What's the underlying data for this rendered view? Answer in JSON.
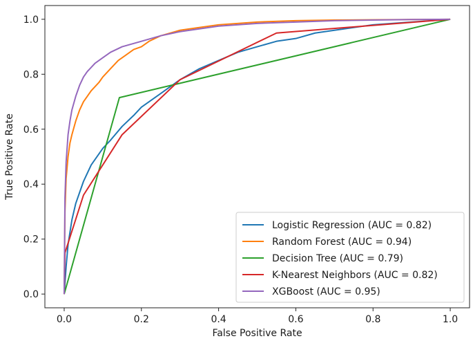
{
  "chart_data": {
    "type": "line",
    "title": "",
    "xlabel": "False Positive Rate",
    "ylabel": "True Positive Rate",
    "xlim": [
      -0.05,
      1.05
    ],
    "ylim": [
      -0.05,
      1.05
    ],
    "xticks": [
      0.0,
      0.2,
      0.4,
      0.6,
      0.8,
      1.0
    ],
    "xtick_labels": [
      "0.0",
      "0.2",
      "0.4",
      "0.6",
      "0.8",
      "1.0"
    ],
    "yticks": [
      0.0,
      0.2,
      0.4,
      0.6,
      0.8,
      1.0
    ],
    "ytick_labels": [
      "0.0",
      "0.2",
      "0.4",
      "0.6",
      "0.8",
      "1.0"
    ],
    "grid": false,
    "legend_position": "lower-right",
    "series": [
      {
        "name": "Logistic Regression (AUC = 0.82)",
        "color": "#1f77b4",
        "x": [
          0,
          0.005,
          0.01,
          0.02,
          0.03,
          0.05,
          0.07,
          0.1,
          0.12,
          0.15,
          0.18,
          0.2,
          0.25,
          0.3,
          0.35,
          0.4,
          0.45,
          0.5,
          0.55,
          0.6,
          0.65,
          0.7,
          0.75,
          0.8,
          0.85,
          0.9,
          0.95,
          1.0
        ],
        "y": [
          0,
          0.1,
          0.18,
          0.27,
          0.33,
          0.41,
          0.47,
          0.53,
          0.56,
          0.61,
          0.65,
          0.68,
          0.73,
          0.78,
          0.82,
          0.85,
          0.88,
          0.9,
          0.92,
          0.93,
          0.95,
          0.96,
          0.97,
          0.98,
          0.985,
          0.99,
          0.995,
          1.0
        ]
      },
      {
        "name": "Random Forest (AUC = 0.94)",
        "color": "#ff7f0e",
        "x": [
          0,
          0.002,
          0.005,
          0.01,
          0.015,
          0.02,
          0.03,
          0.04,
          0.05,
          0.07,
          0.09,
          0.1,
          0.12,
          0.14,
          0.16,
          0.18,
          0.2,
          0.22,
          0.25,
          0.3,
          0.35,
          0.4,
          0.5,
          0.6,
          0.7,
          0.8,
          0.9,
          1.0
        ],
        "y": [
          0,
          0.3,
          0.42,
          0.5,
          0.55,
          0.58,
          0.63,
          0.67,
          0.7,
          0.74,
          0.77,
          0.79,
          0.82,
          0.85,
          0.87,
          0.89,
          0.9,
          0.92,
          0.94,
          0.96,
          0.97,
          0.98,
          0.99,
          0.995,
          0.997,
          0.998,
          0.999,
          1.0
        ]
      },
      {
        "name": "Decision Tree (AUC = 0.79)",
        "color": "#2ca02c",
        "x": [
          0,
          0.143,
          1.0
        ],
        "y": [
          0,
          0.715,
          1.0
        ]
      },
      {
        "name": "K-Nearest Neighbors (AUC = 0.82)",
        "color": "#d62728",
        "x": [
          0,
          0.002,
          0.05,
          0.15,
          0.3,
          0.55,
          1.0
        ],
        "y": [
          0,
          0.15,
          0.36,
          0.58,
          0.78,
          0.95,
          1.0
        ]
      },
      {
        "name": "XGBoost (AUC = 0.95)",
        "color": "#9467bd",
        "x": [
          0,
          0.002,
          0.005,
          0.01,
          0.015,
          0.02,
          0.03,
          0.04,
          0.05,
          0.06,
          0.08,
          0.1,
          0.12,
          0.15,
          0.2,
          0.25,
          0.3,
          0.4,
          0.5,
          0.6,
          0.7,
          0.8,
          0.9,
          1.0
        ],
        "y": [
          0,
          0.35,
          0.48,
          0.58,
          0.63,
          0.67,
          0.72,
          0.76,
          0.79,
          0.81,
          0.84,
          0.86,
          0.88,
          0.9,
          0.92,
          0.94,
          0.955,
          0.975,
          0.985,
          0.99,
          0.995,
          0.997,
          0.999,
          1.0
        ]
      }
    ]
  }
}
